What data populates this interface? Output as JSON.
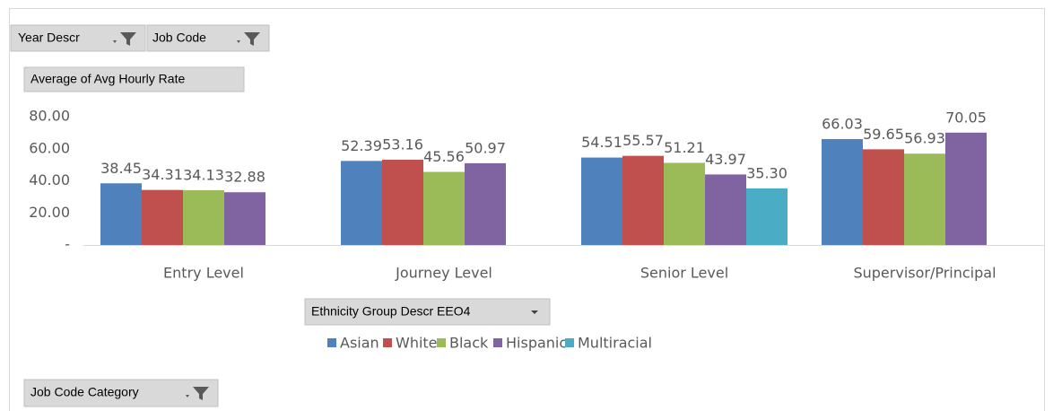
{
  "pivot": {
    "filters": [
      "Year Descr",
      "Job Code"
    ],
    "values_field": "Average of Avg Hourly Rate",
    "legend_field": "Ethnicity Group Descr EEO4",
    "axis_field": "Job Code Category"
  },
  "chart_data": {
    "type": "bar",
    "categories": [
      "Entry Level",
      "Journey Level",
      "Senior Level",
      "Supervisor/Principal"
    ],
    "series": [
      {
        "name": "Asian",
        "color": "#4f81bd",
        "values": [
          38.45,
          52.39,
          54.51,
          66.03
        ],
        "value_labels": [
          "38.45",
          "52.39",
          "54.51",
          "66.03"
        ]
      },
      {
        "name": "White",
        "color": "#c0504d",
        "values": [
          34.31,
          53.16,
          55.57,
          59.65
        ],
        "value_labels": [
          "34.31",
          "53.16",
          "55.57",
          "59.65"
        ]
      },
      {
        "name": "Black",
        "color": "#9bbb59",
        "values": [
          34.13,
          45.56,
          51.21,
          56.93
        ],
        "value_labels": [
          "34.13",
          "45.56",
          "51.21",
          "56.93"
        ]
      },
      {
        "name": "Hispanic",
        "color": "#8064a2",
        "values": [
          32.88,
          50.97,
          43.97,
          70.05
        ],
        "value_labels": [
          "32.88",
          "50.97",
          "43.97",
          "70.05"
        ]
      },
      {
        "name": "Multiracial",
        "color": "#4bacc6",
        "values": [
          null,
          null,
          35.3,
          null
        ],
        "value_labels": [
          null,
          null,
          "35.30",
          null
        ]
      }
    ],
    "ylim": [
      0,
      80
    ],
    "yticks": [
      {
        "value": 0,
        "label": "-"
      },
      {
        "value": 20,
        "label": "20.00"
      },
      {
        "value": 40,
        "label": "40.00"
      },
      {
        "value": 60,
        "label": "60.00"
      },
      {
        "value": 80,
        "label": "80.00"
      }
    ],
    "grid": false,
    "legend": "bottom"
  }
}
